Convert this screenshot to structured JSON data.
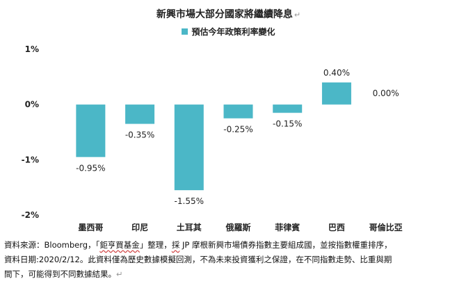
{
  "chart_data": {
    "type": "bar",
    "title": "新興市場大部分國家將繼續降息",
    "legend_position": "top-center",
    "grid": false,
    "categories": [
      "墨西哥",
      "印尼",
      "土耳其",
      "俄羅斯",
      "菲律賓",
      "巴西",
      "哥倫比亞"
    ],
    "series": [
      {
        "name": "預估今年政策利率變化",
        "values": [
          -0.95,
          -0.35,
          -1.55,
          -0.25,
          -0.15,
          0.4,
          0.0
        ],
        "value_labels": [
          "-0.95%",
          "-0.35%",
          "-1.55%",
          "-0.25%",
          "-0.15%",
          "0.40%",
          "0.00%"
        ],
        "color": "#4bb7c7"
      }
    ],
    "ylim": [
      -2,
      1
    ],
    "yticks": [
      1,
      0,
      -1,
      -2
    ],
    "ytick_labels": [
      "1%",
      "0%",
      "-1%",
      "-2%"
    ],
    "xlabel": "",
    "ylabel": ""
  },
  "note": {
    "line1_a": "資料來源：Bloomberg，「",
    "line1_b": "鉅亨買基金",
    "line1_c": "」整理，",
    "line1_d": "採",
    "line1_e": " JP 摩根新興市場債券指數主要組成國，並按指數權重排序，",
    "line2": "資料日期:2020/2/12。此資料僅為歷史數據模擬回測，不為未來投資獲利之保證，在不同指數走勢、比重與期",
    "line3": "間下，可能得到不同數據結果。"
  },
  "ret_glyph": "↵"
}
